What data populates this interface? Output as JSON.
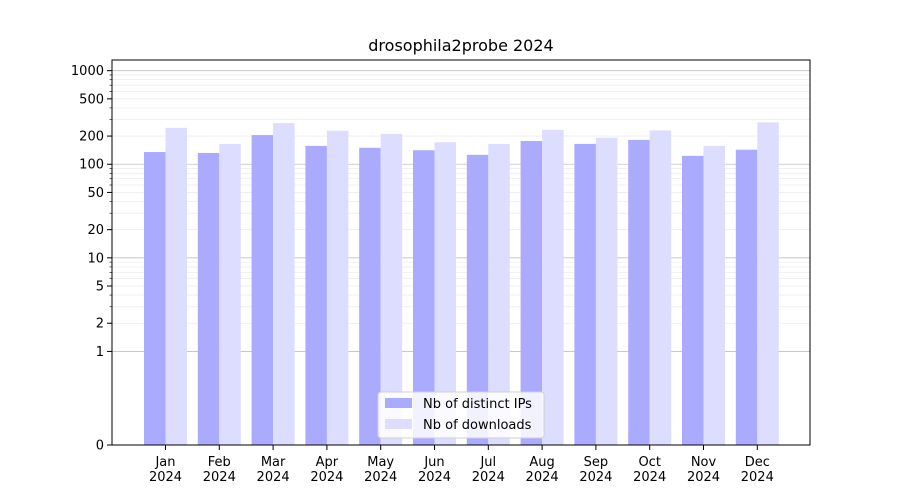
{
  "chart_data": {
    "type": "bar",
    "title": "drosophila2probe 2024",
    "xlabel": "",
    "ylabel": "",
    "y_scale": "symlog",
    "ylim": [
      0,
      1300
    ],
    "y_ticks": [
      0,
      1,
      2,
      5,
      10,
      20,
      50,
      100,
      200,
      500,
      1000
    ],
    "y_tick_labels": [
      "0",
      "1",
      "2",
      "5",
      "10",
      "20",
      "50",
      "100",
      "200",
      "500",
      "1000"
    ],
    "categories": [
      "Jan\n2024",
      "Feb\n2024",
      "Mar\n2024",
      "Apr\n2024",
      "May\n2024",
      "Jun\n2024",
      "Jul\n2024",
      "Aug\n2024",
      "Sep\n2024",
      "Oct\n2024",
      "Nov\n2024",
      "Dec\n2024"
    ],
    "series": [
      {
        "name": "Nb of distinct IPs",
        "color": "#aaaaff",
        "values": [
          135,
          132,
          205,
          157,
          150,
          141,
          126,
          177,
          165,
          182,
          123,
          143
        ]
      },
      {
        "name": "Nb of downloads",
        "color": "#ddddff",
        "values": [
          245,
          165,
          275,
          228,
          211,
          172,
          165,
          233,
          192,
          230,
          157,
          280
        ]
      }
    ],
    "grid": true,
    "legend_position": "bottom-center"
  }
}
